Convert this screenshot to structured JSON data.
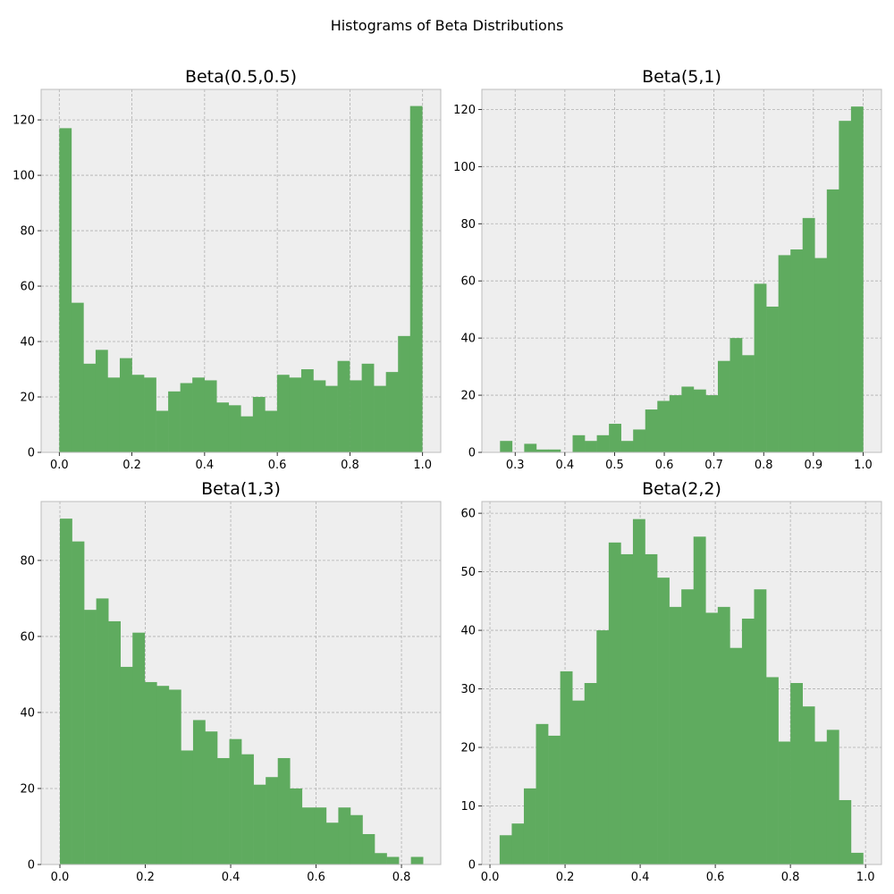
{
  "figure_title": "Histograms of Beta Distributions",
  "chart_data": [
    {
      "type": "bar",
      "title": "Beta(0.5,0.5)",
      "xlabel": "",
      "ylabel": "",
      "xlim": [
        -0.05,
        1.05
      ],
      "ylim": [
        0,
        131
      ],
      "xticks": [
        0.0,
        0.2,
        0.4,
        0.6,
        0.8,
        1.0
      ],
      "xtick_labels": [
        "0.0",
        "0.2",
        "0.4",
        "0.6",
        "0.8",
        "1.0"
      ],
      "yticks": [
        0,
        20,
        40,
        60,
        80,
        100,
        120
      ],
      "ytick_labels": [
        "0",
        "20",
        "40",
        "60",
        "80",
        "100",
        "120"
      ],
      "grid": true,
      "color": "#5fab5f",
      "bin_start": 0.0,
      "bin_width": 0.0333,
      "values": [
        117,
        54,
        32,
        37,
        27,
        34,
        28,
        27,
        15,
        22,
        25,
        27,
        26,
        18,
        17,
        13,
        20,
        15,
        28,
        27,
        30,
        26,
        24,
        33,
        26,
        32,
        24,
        29,
        42,
        125
      ]
    },
    {
      "type": "bar",
      "title": "Beta(5,1)",
      "xlabel": "",
      "ylabel": "",
      "xlim": [
        0.233,
        1.037
      ],
      "ylim": [
        0,
        127
      ],
      "xticks": [
        0.3,
        0.4,
        0.5,
        0.6,
        0.7,
        0.8,
        0.9,
        1.0
      ],
      "xtick_labels": [
        "0.3",
        "0.4",
        "0.5",
        "0.6",
        "0.7",
        "0.8",
        "0.9",
        "1.0"
      ],
      "yticks": [
        0,
        20,
        40,
        60,
        80,
        100,
        120
      ],
      "ytick_labels": [
        "0",
        "20",
        "40",
        "60",
        "80",
        "100",
        "120"
      ],
      "grid": true,
      "color": "#5fab5f",
      "bin_start": 0.2695,
      "bin_width": 0.02435,
      "values": [
        4,
        0,
        3,
        1,
        1,
        0,
        6,
        4,
        6,
        10,
        4,
        8,
        15,
        18,
        20,
        23,
        22,
        20,
        32,
        40,
        34,
        59,
        51,
        69,
        71,
        82,
        68,
        92,
        116,
        121
      ]
    },
    {
      "type": "bar",
      "title": "Beta(1,3)",
      "xlabel": "",
      "ylabel": "",
      "xlim": [
        -0.044,
        0.892
      ],
      "ylim": [
        0,
        95.5
      ],
      "xticks": [
        0.0,
        0.2,
        0.4,
        0.6,
        0.8
      ],
      "xtick_labels": [
        "0.0",
        "0.2",
        "0.4",
        "0.6",
        "0.8"
      ],
      "yticks": [
        0,
        20,
        40,
        60,
        80
      ],
      "ytick_labels": [
        "0",
        "20",
        "40",
        "60",
        "80"
      ],
      "grid": true,
      "color": "#5fab5f",
      "bin_start": 0.0,
      "bin_width": 0.02835,
      "values": [
        91,
        85,
        67,
        70,
        64,
        52,
        61,
        48,
        47,
        46,
        30,
        38,
        35,
        28,
        33,
        29,
        21,
        23,
        28,
        20,
        15,
        15,
        11,
        15,
        13,
        8,
        3,
        2,
        0,
        2
      ]
    },
    {
      "type": "bar",
      "title": "Beta(2,2)",
      "xlabel": "",
      "ylabel": "",
      "xlim": [
        -0.0215,
        1.0425
      ],
      "ylim": [
        0,
        62
      ],
      "xticks": [
        0.0,
        0.2,
        0.4,
        0.6,
        0.8,
        1.0
      ],
      "xtick_labels": [
        "0.0",
        "0.2",
        "0.4",
        "0.6",
        "0.8",
        "1.0"
      ],
      "yticks": [
        0,
        10,
        20,
        30,
        40,
        50,
        60
      ],
      "ytick_labels": [
        "0",
        "10",
        "20",
        "30",
        "40",
        "50",
        "60"
      ],
      "grid": true,
      "color": "#5fab5f",
      "bin_start": 0.0258,
      "bin_width": 0.03226,
      "values": [
        5,
        7,
        13,
        24,
        22,
        33,
        28,
        31,
        40,
        55,
        53,
        59,
        53,
        49,
        44,
        47,
        56,
        43,
        44,
        37,
        42,
        47,
        32,
        21,
        31,
        27,
        21,
        23,
        11,
        2
      ]
    }
  ]
}
